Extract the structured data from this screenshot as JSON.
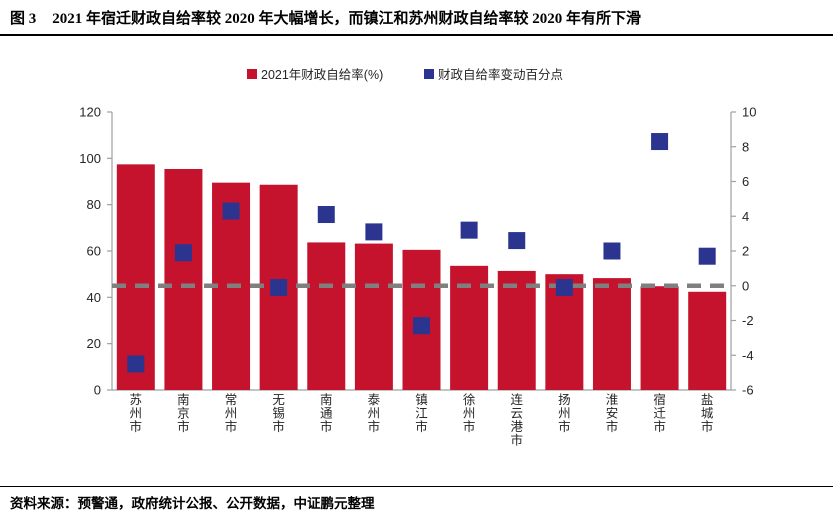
{
  "figure": {
    "label": "图 3",
    "title": "2021 年宿迁财政自给率较 2020 年大幅增长，而镇江和苏州财政自给率较 2020 年有所下滑",
    "source": "资料来源：预警通，政府统计公报、公开数据，中证鹏元整理"
  },
  "colors": {
    "bar_red": "#c5132d",
    "marker_blue": "#2b3590",
    "axis_gray": "#a0a0a0",
    "zero_line_gray": "#7f7f7f",
    "tick_text": "#262626"
  },
  "chart_data": {
    "type": "bar",
    "title": "",
    "categories": [
      "苏州市",
      "南京市",
      "常州市",
      "无锡市",
      "南通市",
      "泰州市",
      "镇江市",
      "徐州市",
      "连云港市",
      "扬州市",
      "淮安市",
      "宿迁市",
      "盐城市"
    ],
    "series": [
      {
        "name": "2021年财政自给率(%)",
        "type": "bar",
        "axis": "left",
        "color": "#c5132d",
        "values": [
          97.4,
          95.4,
          89.5,
          88.6,
          63.7,
          63.2,
          60.5,
          53.6,
          51.4,
          50.0,
          48.3,
          44.8,
          42.4
        ]
      },
      {
        "name": "财政自给率变动百分点",
        "type": "scatter-square",
        "axis": "right",
        "color": "#2b3590",
        "values": [
          -4.5,
          1.9,
          4.3,
          -0.1,
          4.1,
          3.1,
          -2.3,
          3.2,
          2.6,
          -0.1,
          2.0,
          8.3,
          1.7
        ]
      }
    ],
    "left_axis": {
      "min": 0,
      "max": 120,
      "step": 20,
      "ticks": [
        0,
        20,
        40,
        60,
        80,
        100,
        120
      ]
    },
    "right_axis": {
      "min": -6,
      "max": 10,
      "step": 2,
      "ticks": [
        -6,
        -4,
        -2,
        0,
        2,
        4,
        6,
        8,
        10
      ]
    },
    "zero_line": {
      "axis": "right",
      "value": 0,
      "style": "dashed",
      "color": "#7f7f7f"
    },
    "grid": false,
    "legend_position": "top"
  }
}
